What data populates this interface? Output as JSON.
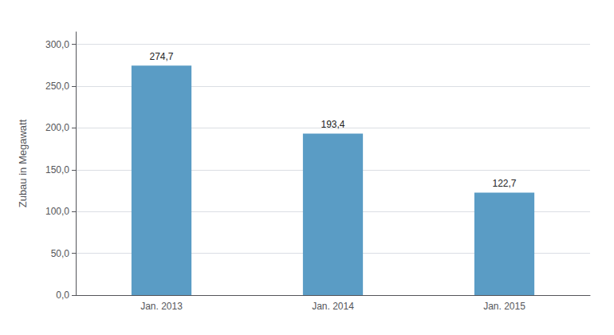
{
  "chart_data": {
    "type": "bar",
    "ylabel": "Zubau in Megawatt",
    "categories": [
      "Jan. 2013",
      "Jan. 2014",
      "Jan. 2015"
    ],
    "values": [
      274.7,
      193.4,
      122.7
    ],
    "value_labels": [
      "274,7",
      "193,4",
      "122,7"
    ],
    "data_labels": true,
    "color": "#5a9cc5",
    "ylim": [
      0,
      315
    ],
    "yticks": [
      {
        "value": 0,
        "label": "0,0"
      },
      {
        "value": 50,
        "label": "50,0"
      },
      {
        "value": 100,
        "label": "100,0"
      },
      {
        "value": 150,
        "label": "150,0"
      },
      {
        "value": 200,
        "label": "200,0"
      },
      {
        "value": 250,
        "label": "250,0"
      },
      {
        "value": 300,
        "label": "300,0"
      }
    ],
    "grid": true
  }
}
